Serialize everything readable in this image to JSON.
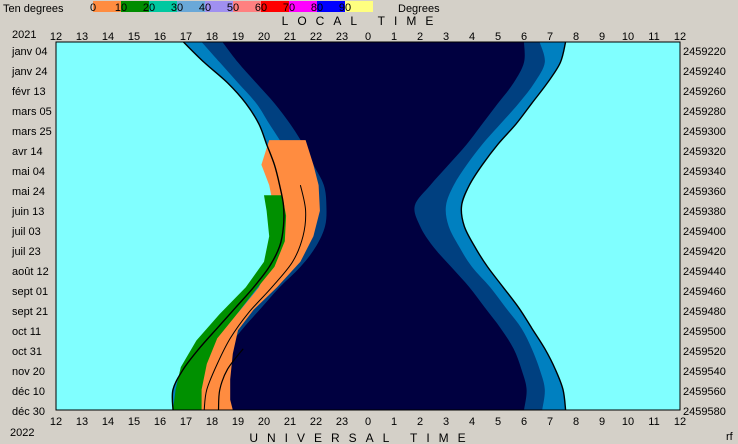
{
  "chart_data": {
    "type": "area",
    "legend": {
      "label": "Ten degrees",
      "unit": "Degrees",
      "position": "top",
      "ticks": [
        "0",
        "10",
        "20",
        "30",
        "40",
        "50",
        "60",
        "70",
        "80",
        "90"
      ],
      "colors": [
        "#ff8c40",
        "#008c00",
        "#00c8a0",
        "#6aa8d8",
        "#a090f0",
        "#ff8080",
        "#ff0000",
        "#ff00ff",
        "#0000ff",
        "#ffff80"
      ]
    },
    "title_top": "LOCAL TIME",
    "title_bottom": "UNIVERSAL TIME",
    "corner_note": "rf",
    "year_start": "2021",
    "year_end": "2022",
    "x_ticks": [
      "12",
      "13",
      "14",
      "15",
      "16",
      "17",
      "18",
      "19",
      "20",
      "21",
      "22",
      "23",
      "0",
      "1",
      "2",
      "3",
      "4",
      "5",
      "6",
      "7",
      "8",
      "9",
      "10",
      "11",
      "12"
    ],
    "y_ticks_dates": [
      "janv 04",
      "janv 24",
      "févr 13",
      "mars 05",
      "mars 25",
      "avr 14",
      "mai 04",
      "mai 24",
      "juin 13",
      "juil 03",
      "juil 23",
      "août 12",
      "sept 01",
      "sept 21",
      "oct 11",
      "oct 31",
      "nov 20",
      "déc 10",
      "déc 30"
    ],
    "y_ticks_jd": [
      "2459220",
      "2459240",
      "2459260",
      "2459280",
      "2459300",
      "2459320",
      "2459340",
      "2459360",
      "2459380",
      "2459400",
      "2459420",
      "2459440",
      "2459460",
      "2459480",
      "2459500",
      "2459520",
      "2459540",
      "2459560",
      "2459580"
    ],
    "xlim_hours": [
      12,
      36
    ],
    "ylim_days": [
      0,
      360
    ],
    "colors": {
      "day": "#80ffff",
      "night": "#000040",
      "twilight_light": "#0080c0",
      "twilight_dark": "#004080",
      "orange": "#ff8c40",
      "green": "#009000"
    },
    "series": [
      {
        "name": "evening outer",
        "days": [
          0,
          20,
          40,
          60,
          80,
          100,
          120,
          140,
          160,
          180,
          200,
          220,
          240,
          260,
          280,
          300,
          320,
          340,
          360
        ],
        "hours": [
          16.9,
          17.7,
          18.6,
          19.3,
          19.8,
          20.1,
          20.4,
          20.6,
          20.75,
          20.75,
          20.6,
          20.2,
          19.6,
          18.9,
          18.2,
          17.5,
          16.9,
          16.5,
          16.5
        ]
      },
      {
        "name": "evening mid",
        "days": [
          0,
          20,
          40,
          60,
          80,
          100,
          120,
          140,
          160,
          180,
          200,
          220,
          240,
          260,
          280,
          300,
          320,
          340,
          360
        ],
        "hours": [
          17.6,
          18.3,
          19.0,
          19.7,
          20.2,
          20.7,
          21.1,
          21.4,
          21.6,
          21.5,
          21.2,
          20.7,
          20.0,
          19.3,
          18.6,
          17.9,
          17.4,
          17.3,
          17.6
        ]
      },
      {
        "name": "evening inner",
        "days": [
          0,
          20,
          40,
          60,
          80,
          100,
          120,
          140,
          160,
          180,
          200,
          220,
          240,
          260,
          280,
          300,
          320,
          340,
          360
        ],
        "hours": [
          18.4,
          19.0,
          19.7,
          20.4,
          21.0,
          21.5,
          21.9,
          22.3,
          22.4,
          22.35,
          22.0,
          21.4,
          20.6,
          19.9,
          19.2,
          18.6,
          18.3,
          18.1,
          18.0
        ]
      },
      {
        "name": "morning inner",
        "days": [
          0,
          20,
          40,
          60,
          80,
          100,
          120,
          140,
          160,
          180,
          200,
          220,
          240,
          260,
          280,
          300,
          320,
          340,
          360
        ],
        "hours": [
          30.0,
          30.0,
          29.6,
          29.0,
          28.4,
          27.8,
          27.1,
          26.4,
          25.8,
          26.0,
          26.5,
          27.2,
          27.9,
          28.5,
          29.1,
          29.6,
          29.9,
          30.1,
          30.0
        ]
      },
      {
        "name": "morning mid",
        "days": [
          0,
          20,
          40,
          60,
          80,
          100,
          120,
          140,
          160,
          180,
          200,
          220,
          240,
          260,
          280,
          300,
          320,
          340,
          360
        ],
        "hours": [
          30.6,
          30.8,
          30.4,
          29.8,
          29.1,
          28.4,
          27.8,
          27.3,
          27.0,
          27.1,
          27.5,
          28.0,
          28.7,
          29.3,
          29.9,
          30.3,
          30.6,
          30.8,
          30.7
        ]
      },
      {
        "name": "morning outer",
        "days": [
          0,
          20,
          40,
          60,
          80,
          100,
          120,
          140,
          160,
          180,
          200,
          220,
          240,
          260,
          280,
          300,
          320,
          340,
          360
        ],
        "hours": [
          31.6,
          31.4,
          30.9,
          30.3,
          29.7,
          29.0,
          28.4,
          27.9,
          27.6,
          27.7,
          28.1,
          28.6,
          29.2,
          29.8,
          30.3,
          30.8,
          31.2,
          31.5,
          31.6
        ]
      }
    ]
  }
}
